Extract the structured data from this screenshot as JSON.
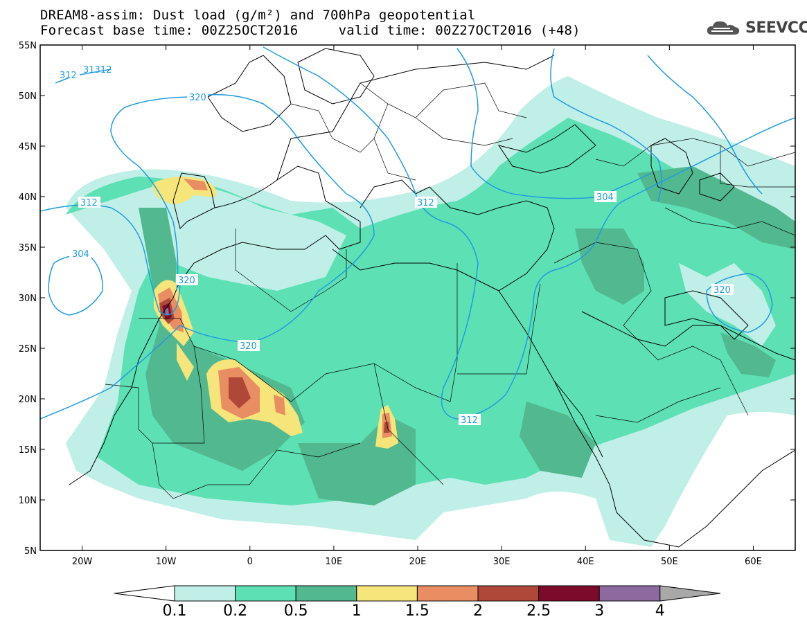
{
  "title": {
    "line1": "DREAM8-assim: Dust load (g/m²) and 700hPa geopotential",
    "line2": "Forecast base time: 00Z25OCT2016     valid time: 00Z27OCT2016 (+48)"
  },
  "logo": {
    "text": "SEEVCCC",
    "icon": "cloud-icon"
  },
  "map": {
    "lon_range": [
      -25,
      65
    ],
    "lat_range": [
      5,
      55
    ],
    "lon_ticks": [
      "20W",
      "10W",
      "0",
      "10E",
      "20E",
      "30E",
      "40E",
      "50E",
      "60E"
    ],
    "lat_ticks": [
      "55N",
      "50N",
      "45N",
      "40N",
      "35N",
      "30N",
      "25N",
      "20N",
      "15N",
      "10N",
      "5N"
    ],
    "contour_labels": [
      "312",
      "31312",
      "320",
      "312",
      "304",
      "320",
      "320",
      "312",
      "304",
      "320",
      "312"
    ]
  },
  "colorbar": {
    "labels": [
      "0.1",
      "0.2",
      "0.5",
      "1",
      "1.5",
      "2",
      "2.5",
      "3",
      "4"
    ],
    "colors": [
      "#bfefe6",
      "#5ee0b5",
      "#52b890",
      "#f5e57a",
      "#e98d62",
      "#b0483a",
      "#7c0a2a",
      "#8c6aa0"
    ],
    "over_color": "#a8a8a8",
    "under_color": "#ffffff"
  }
}
